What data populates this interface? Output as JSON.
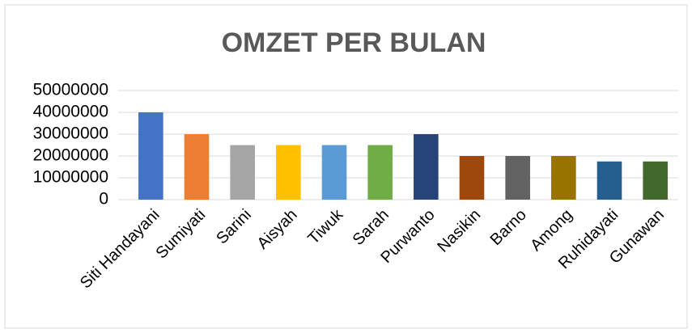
{
  "chart_data": {
    "type": "bar",
    "title": "OMZET PER BULAN",
    "categories": [
      "Siti Handayani",
      "Sumiyati",
      "Sarini",
      "Aisyah",
      "Tiwuk",
      "Sarah",
      "Purwanto",
      "Nasikin",
      "Barno",
      "Among",
      "Ruhidayati",
      "Gunawan"
    ],
    "values": [
      40000000,
      30000000,
      25000000,
      25000000,
      25000000,
      25000000,
      30000000,
      20000000,
      20000000,
      20000000,
      17500000,
      17500000
    ],
    "colors": [
      "#4472c4",
      "#ed7d31",
      "#a5a5a5",
      "#ffc000",
      "#5b9bd5",
      "#70ad47",
      "#264478",
      "#9e480e",
      "#636363",
      "#997300",
      "#255e91",
      "#43682b"
    ],
    "ylim": [
      0,
      50000000
    ],
    "yticks": [
      0,
      10000000,
      20000000,
      30000000,
      40000000,
      50000000
    ],
    "grid": true
  }
}
